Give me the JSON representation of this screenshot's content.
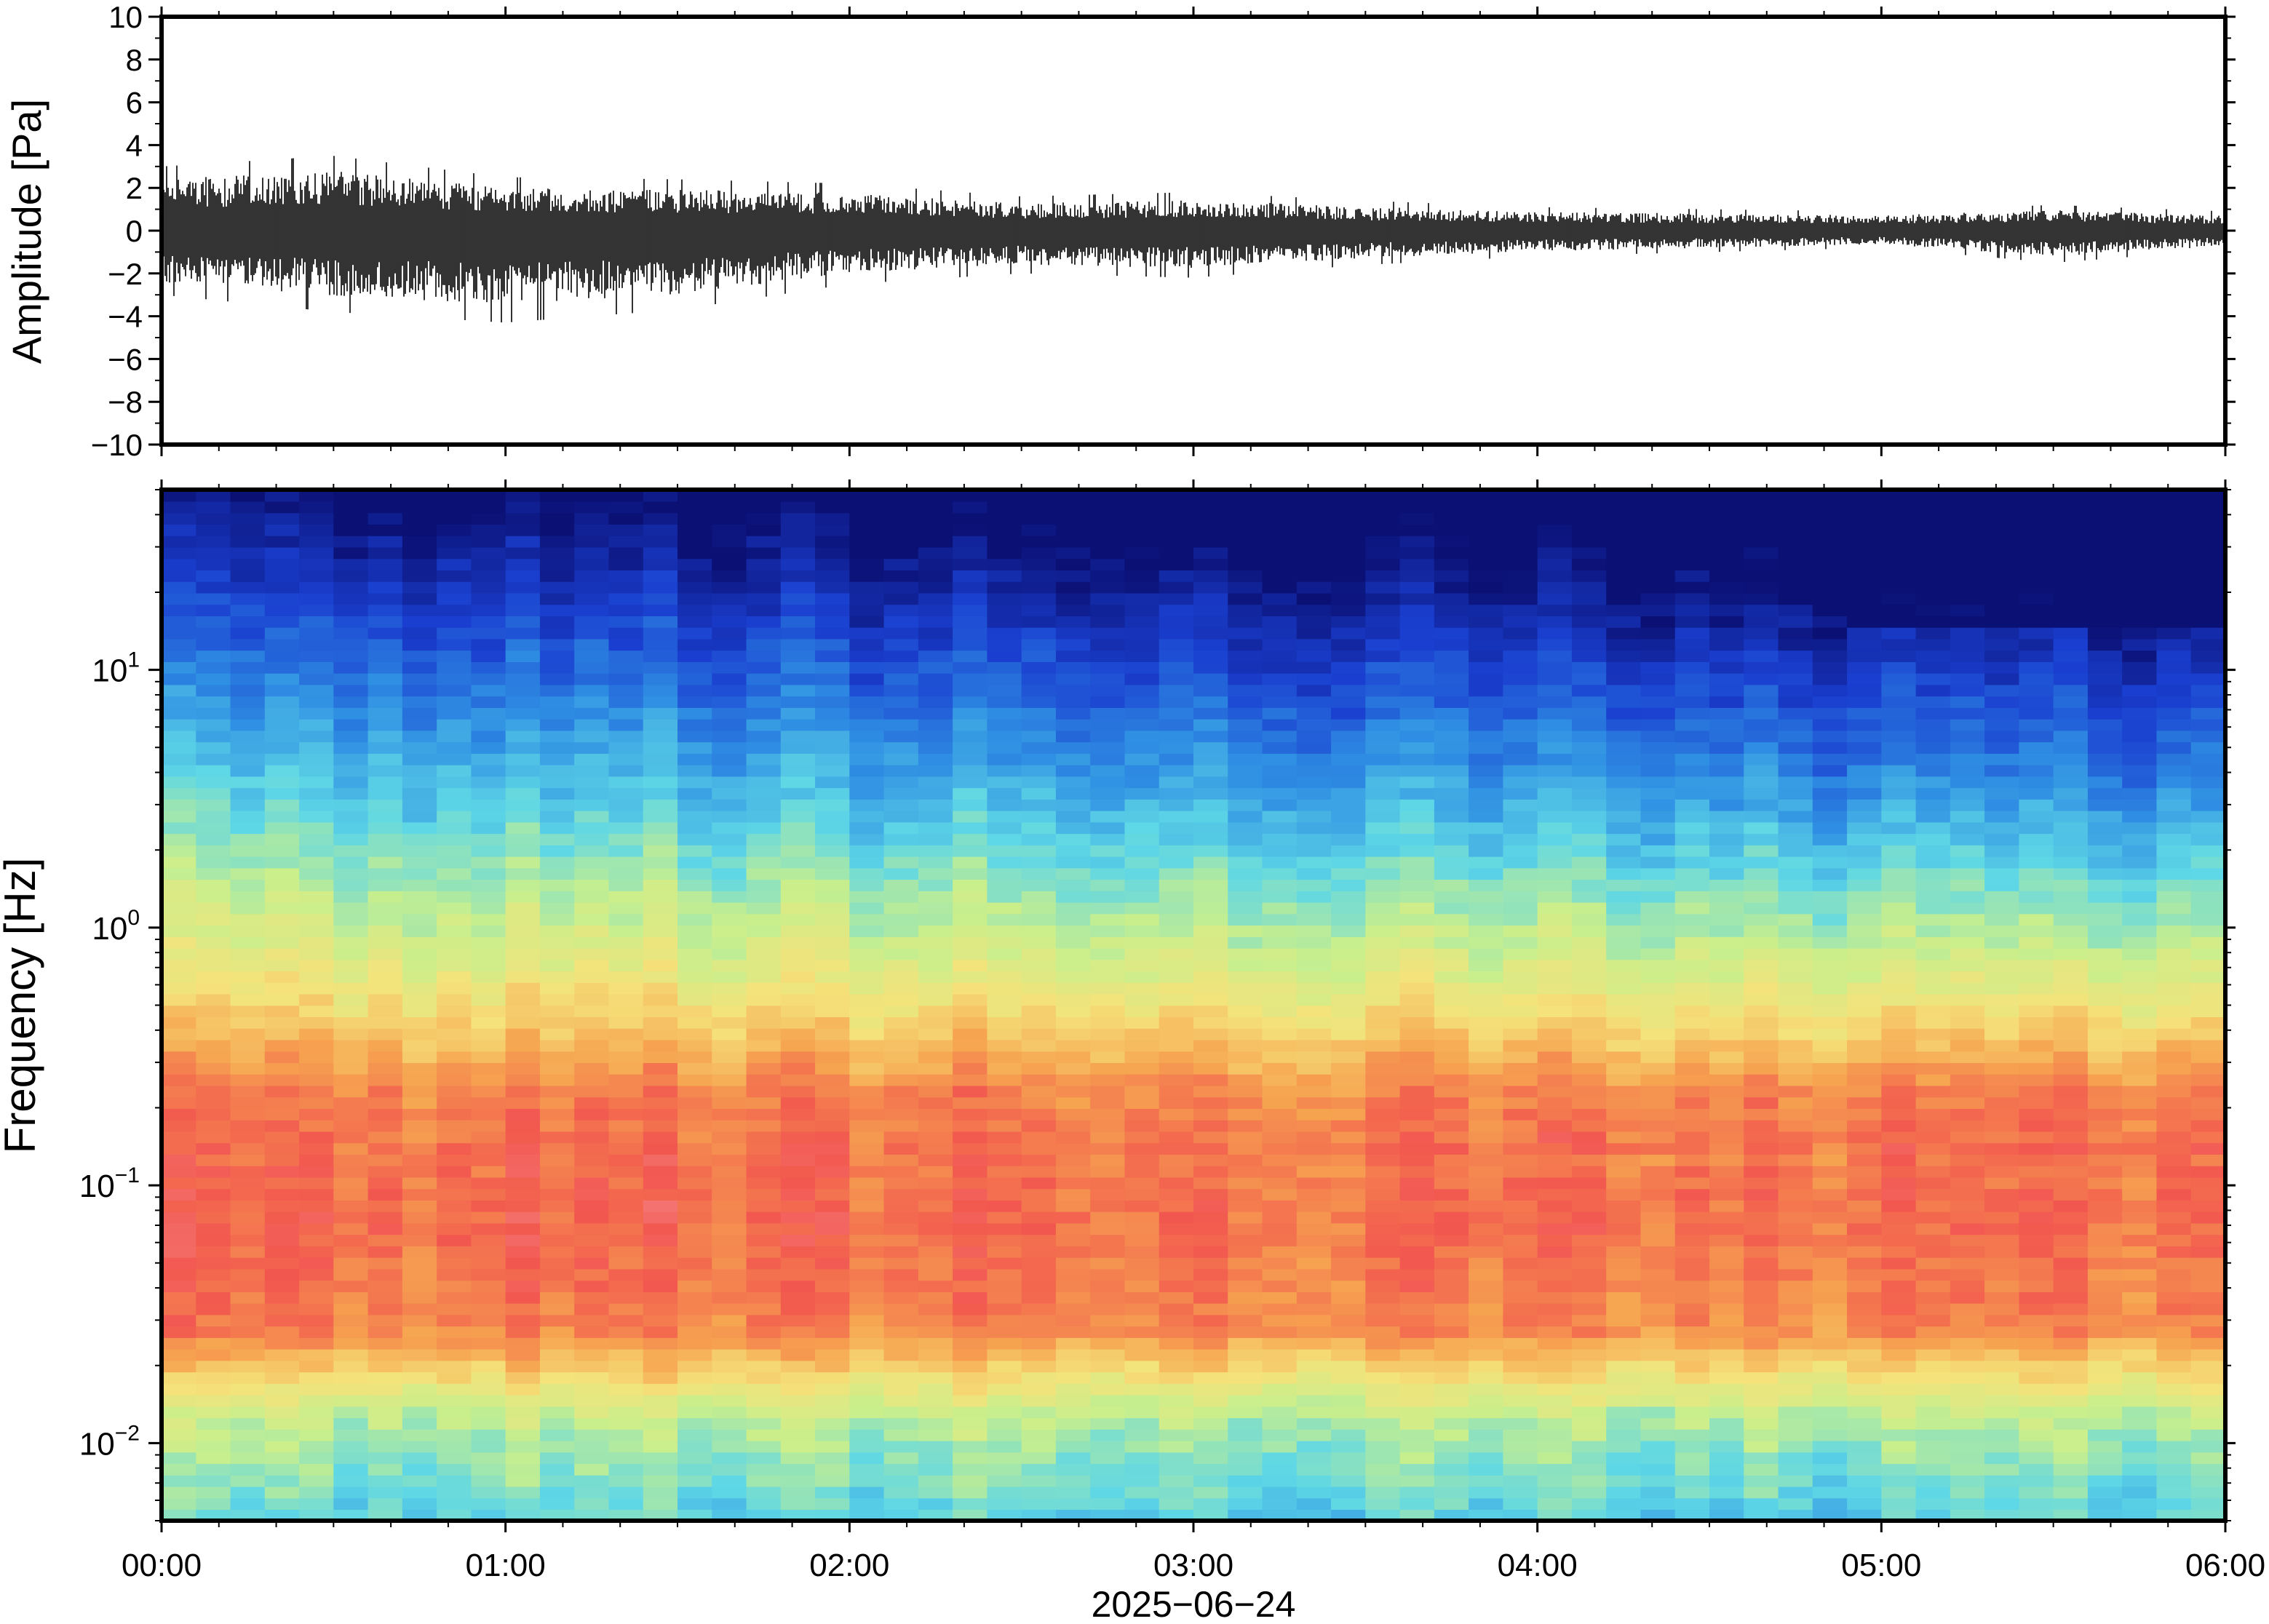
{
  "chart_data": [
    {
      "type": "line",
      "panel": "waveform",
      "ylabel": "Amplitude [Pa]",
      "ylim": [
        -10,
        10
      ],
      "y_ticks": [
        10,
        8,
        6,
        4,
        2,
        0,
        -2,
        -4,
        -6,
        -8,
        -10
      ],
      "y_tick_labels": [
        "10",
        "8",
        "6",
        "4",
        "2",
        "0",
        "−2",
        "−4",
        "−6",
        "−8",
        "−10"
      ],
      "xlim": [
        "00:00",
        "06:00"
      ],
      "line_color": "#000000",
      "envelope": {
        "x": [
          "00:00",
          "00:30",
          "01:00",
          "01:30",
          "02:00",
          "02:30",
          "03:00",
          "03:30",
          "04:00",
          "04:30",
          "05:00",
          "05:30",
          "06:00"
        ],
        "max_amplitude": [
          3.0,
          3.5,
          2.5,
          2.4,
          2.2,
          1.6,
          1.8,
          1.4,
          1.1,
          1.0,
          0.9,
          1.2,
          0.9
        ],
        "min_amplitude": [
          -3.0,
          -3.8,
          -4.3,
          -3.7,
          -2.5,
          -2.0,
          -2.2,
          -1.6,
          -1.2,
          -1.0,
          -0.8,
          -1.5,
          -0.9
        ]
      }
    },
    {
      "type": "heatmap",
      "panel": "spectrogram",
      "ylabel": "Frequency [Hz]",
      "xlabel": "2025−06−24",
      "y_scale": "log",
      "ylim": [
        0.005,
        50
      ],
      "y_ticks": [
        10,
        1,
        0.1,
        0.01
      ],
      "y_tick_labels": [
        {
          "base": "10",
          "exp": "1"
        },
        {
          "base": "10",
          "exp": "0"
        },
        {
          "base": "10",
          "exp": "−1"
        },
        {
          "base": "10",
          "exp": "−2"
        }
      ],
      "x_ticks": [
        "00:00",
        "01:00",
        "02:00",
        "03:00",
        "04:00",
        "05:00",
        "06:00"
      ],
      "colormap": [
        "#0b1074",
        "#1a3fd0",
        "#2f8fe3",
        "#5ed7e6",
        "#c9ef8c",
        "#f5e27a",
        "#f6a450",
        "#f2574f",
        "#f7a0a6"
      ],
      "grid": false
    }
  ]
}
